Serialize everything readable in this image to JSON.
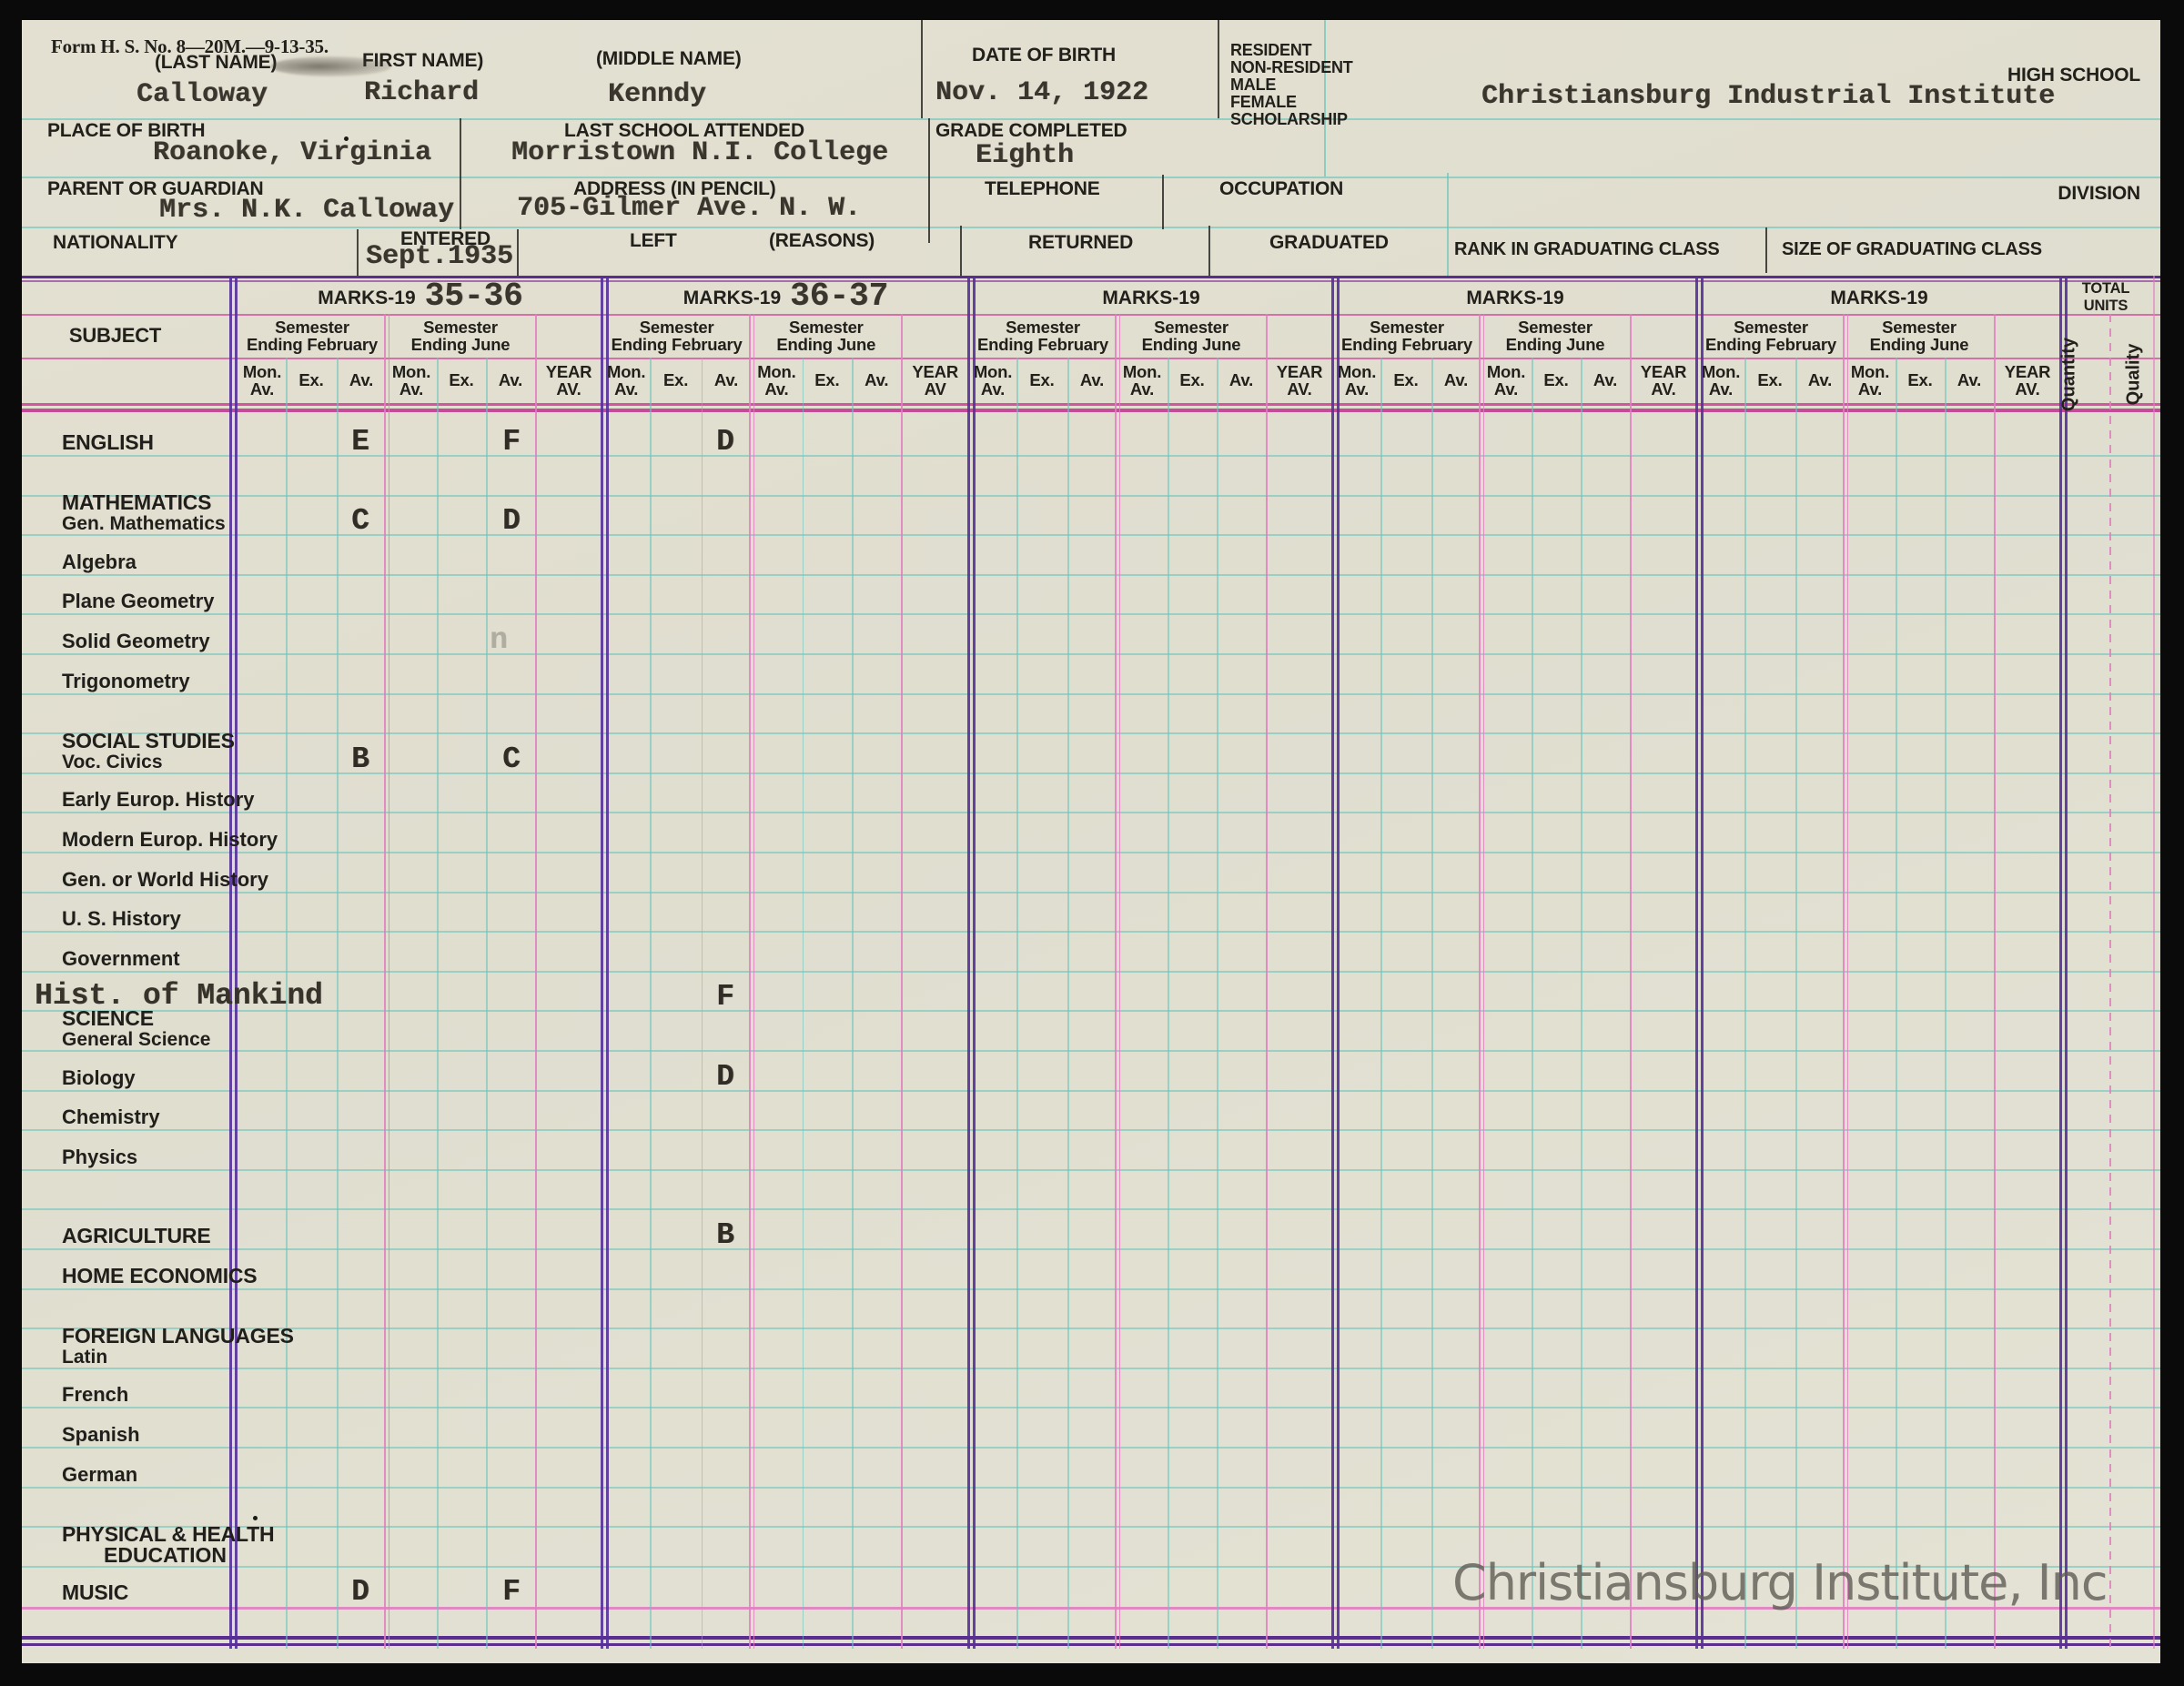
{
  "header": {
    "form_number": "Form H. S. No. 8—20M.—9-13-35.",
    "name_row": {
      "last_label": "(LAST NAME)",
      "last_value": "Calloway",
      "first_label": "FIRST NAME)",
      "first_value": "Richard",
      "middle_label": "(MIDDLE NAME)",
      "middle_value": "Kenndy",
      "dob_label": "DATE OF BIRTH",
      "dob_value": "Nov. 14, 1922",
      "status_lines": [
        "RESIDENT",
        "NON-RESIDENT",
        "MALE",
        "FEMALE",
        "SCHOLARSHIP"
      ],
      "high_school_label": "HIGH SCHOOL",
      "high_school_value": "Christiansburg Industrial Institute"
    },
    "row2": {
      "place_label": "PLACE OF BIRTH",
      "place_value": "Roanoke, Virginia",
      "last_school_label": "LAST SCHOOL ATTENDED",
      "last_school_value": "Morristown N.I. College",
      "grade_label": "GRADE COMPLETED",
      "grade_value": "Eighth"
    },
    "row3": {
      "parent_label": "PARENT OR GUARDIAN",
      "parent_value": "Mrs. N.K. Calloway",
      "address_label": "ADDRESS (IN PENCIL)",
      "address_value": "705-Gilmer Ave. N. W.",
      "telephone_label": "TELEPHONE",
      "occupation_label": "OCCUPATION",
      "division_label": "DIVISION"
    },
    "row4": {
      "nationality_label": "NATIONALITY",
      "entered_label": "ENTERED",
      "entered_value": "Sept.1935",
      "left_label": "LEFT",
      "reasons_label": "(REASONS)",
      "returned_label": "RETURNED",
      "graduated_label": "GRADUATED",
      "rank_label": "RANK IN GRADUATING CLASS",
      "size_label": "SIZE OF GRADUATING CLASS"
    }
  },
  "table": {
    "subject_label": "SUBJECT",
    "semester_feb": [
      "Semester",
      "Ending February"
    ],
    "semester_jun": [
      "Semester",
      "Ending June"
    ],
    "col_mon": [
      "Mon.",
      "Av."
    ],
    "col_ex": "Ex.",
    "col_av": "Av.",
    "groups": [
      {
        "title": "MARKS-19",
        "year": "35-36",
        "year_av": [
          "YEAR",
          "AV."
        ]
      },
      {
        "title": "MARKS-19",
        "year": "36-37",
        "year_av": [
          "YEAR",
          "AV"
        ]
      },
      {
        "title": "MARKS-19",
        "year": "",
        "year_av": [
          "YEAR",
          "AV."
        ]
      },
      {
        "title": "MARKS-19",
        "year": "",
        "year_av": [
          "YEAR",
          "AV."
        ]
      },
      {
        "title": "MARKS-19",
        "year": "",
        "year_av": [
          "YEAR",
          "AV."
        ]
      }
    ],
    "total_units": {
      "title": "TOTAL UNITS",
      "quantity": "Quantity",
      "quality": "Quality"
    },
    "subjects": [
      {
        "row": 0,
        "label": "ENGLISH",
        "style": "caps",
        "grades": {
          "g0_feb_av": "E",
          "g0_jun_av": "F",
          "g1_feb_av": "D"
        }
      },
      {
        "row": 2,
        "label": "MATHEMATICS",
        "sub": "Gen. Mathematics",
        "style": "caps",
        "grades": {
          "g0_feb_av": "C",
          "g0_jun_av": "D"
        }
      },
      {
        "row": 3,
        "label": "Algebra"
      },
      {
        "row": 4,
        "label": "Plane Geometry"
      },
      {
        "row": 5,
        "label": "Solid Geometry",
        "faint": {
          "g0_jun_av": "n"
        }
      },
      {
        "row": 6,
        "label": "Trigonometry"
      },
      {
        "row": 8,
        "label": "SOCIAL STUDIES",
        "sub": "Voc. Civics",
        "style": "caps",
        "grades": {
          "g0_feb_av": "B",
          "g0_jun_av": "C"
        }
      },
      {
        "row": 9,
        "label": "Early Europ. History"
      },
      {
        "row": 10,
        "label": "Modern Europ. History"
      },
      {
        "row": 11,
        "label": "Gen. or World History"
      },
      {
        "row": 12,
        "label": "U. S. History"
      },
      {
        "row": 13,
        "label": "Government"
      },
      {
        "row": 14,
        "label": "Hist. of Mankind",
        "style": "typed",
        "grades": {
          "g1_feb_av": "F"
        }
      },
      {
        "row": 15,
        "label": "SCIENCE",
        "sub": "General Science",
        "style": "caps"
      },
      {
        "row": 16,
        "label": "Biology",
        "grades": {
          "g1_feb_av": "D"
        }
      },
      {
        "row": 17,
        "label": "Chemistry"
      },
      {
        "row": 18,
        "label": "Physics"
      },
      {
        "row": 20,
        "label": "AGRICULTURE",
        "style": "caps",
        "grades": {
          "g1_feb_av": "B"
        }
      },
      {
        "row": 21,
        "label": "HOME ECONOMICS",
        "style": "caps"
      },
      {
        "row": 23,
        "label": "FOREIGN LANGUAGES",
        "sub": "Latin",
        "style": "caps"
      },
      {
        "row": 24,
        "label": "French"
      },
      {
        "row": 25,
        "label": "Spanish"
      },
      {
        "row": 26,
        "label": "German"
      },
      {
        "row": 28,
        "label": "PHYSICAL & HEALTH",
        "sub2": "EDUCATION",
        "style": "caps"
      },
      {
        "row": 29,
        "label": "MUSIC",
        "style": "caps",
        "grades": {
          "g0_feb_av": "D",
          "g0_jun_av": "F"
        }
      }
    ]
  },
  "scan": {
    "watermark": "Christiansburg Institute, Inc"
  },
  "colors": {
    "paper": "#e2dfd1",
    "cyan_line": "#6cc4bb",
    "pink_line": "#e07ec0",
    "magenta_line": "#d0569f",
    "purple_line": "#55309a",
    "ink": "#3a362e"
  }
}
